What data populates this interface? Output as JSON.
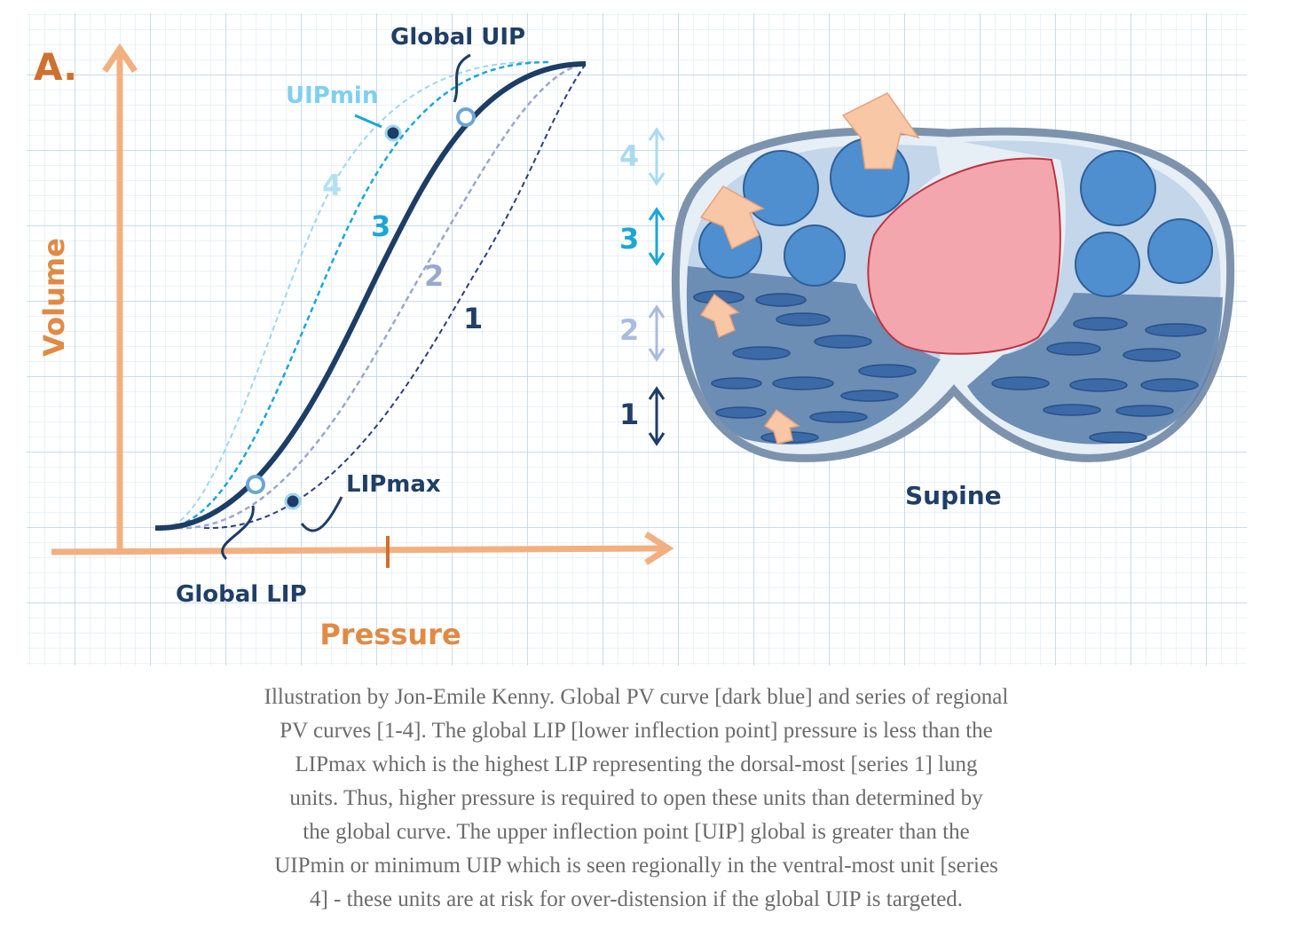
{
  "figure": {
    "panel_label": "A.",
    "y_axis_label": "Volume",
    "x_axis_label": "Pressure",
    "annotations": {
      "global_uip": "Global UIP",
      "uip_min": "UIPmin",
      "global_lip": "Global LIP",
      "lip_max": "LIPmax"
    },
    "curve_labels": [
      "1",
      "2",
      "3",
      "4"
    ],
    "region_labels": [
      "4",
      "3",
      "2",
      "1"
    ],
    "position_label": "Supine"
  },
  "caption": {
    "lines": [
      "Illustration by Jon-Emile Kenny. Global PV curve [dark blue] and series of regional",
      "PV curves [1-4]. The global LIP [lower inflection point] pressure is less than the",
      "LIPmax which is the highest LIP representing the dorsal-most [series 1] lung",
      "units. Thus, higher pressure is required to open these units than determined by",
      "the global curve. The upper inflection point [UIP] global is greater than the",
      "UIPmin or minimum UIP which is seen regionally in the ventral-most unit [series",
      "4] - these units are at risk for over-distension if the global UIP is targeted."
    ]
  }
}
